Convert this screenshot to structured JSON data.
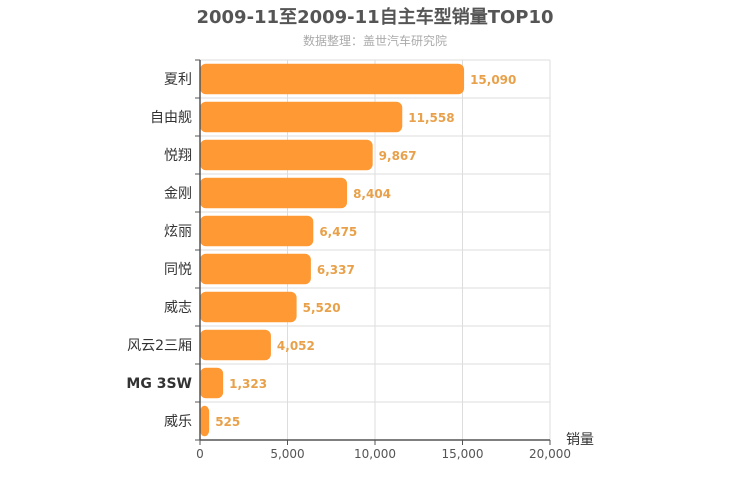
{
  "chart_data": {
    "type": "bar",
    "orientation": "horizontal",
    "title": "2009-11至2009-11自主车型销量TOP10",
    "subtitle": "数据整理：盖世汽车研究院",
    "categories": [
      "夏利",
      "自由舰",
      "悦翔",
      "金刚",
      "炫丽",
      "同悦",
      "威志",
      "风云2三厢",
      "MG 3SW",
      "威乐"
    ],
    "values": [
      15090,
      11558,
      9867,
      8404,
      6475,
      6337,
      5520,
      4052,
      1323,
      525
    ],
    "value_labels": [
      "15,090",
      "11,558",
      "9,867",
      "8,404",
      "6,475",
      "6,337",
      "5,520",
      "4,052",
      "1,323",
      "525"
    ],
    "xlabel": "销量",
    "ylabel": "",
    "xlim": [
      0,
      20000
    ],
    "xticks": [
      0,
      5000,
      10000,
      15000,
      20000
    ],
    "xtick_labels": [
      "0",
      "5,000",
      "10,000",
      "15,000",
      "20,000"
    ],
    "grid": true,
    "legend": "none",
    "colors": {
      "bar": "#ff9933",
      "value_label": "#e8a14a",
      "grid": "#dddddd",
      "axis": "#555555"
    }
  }
}
